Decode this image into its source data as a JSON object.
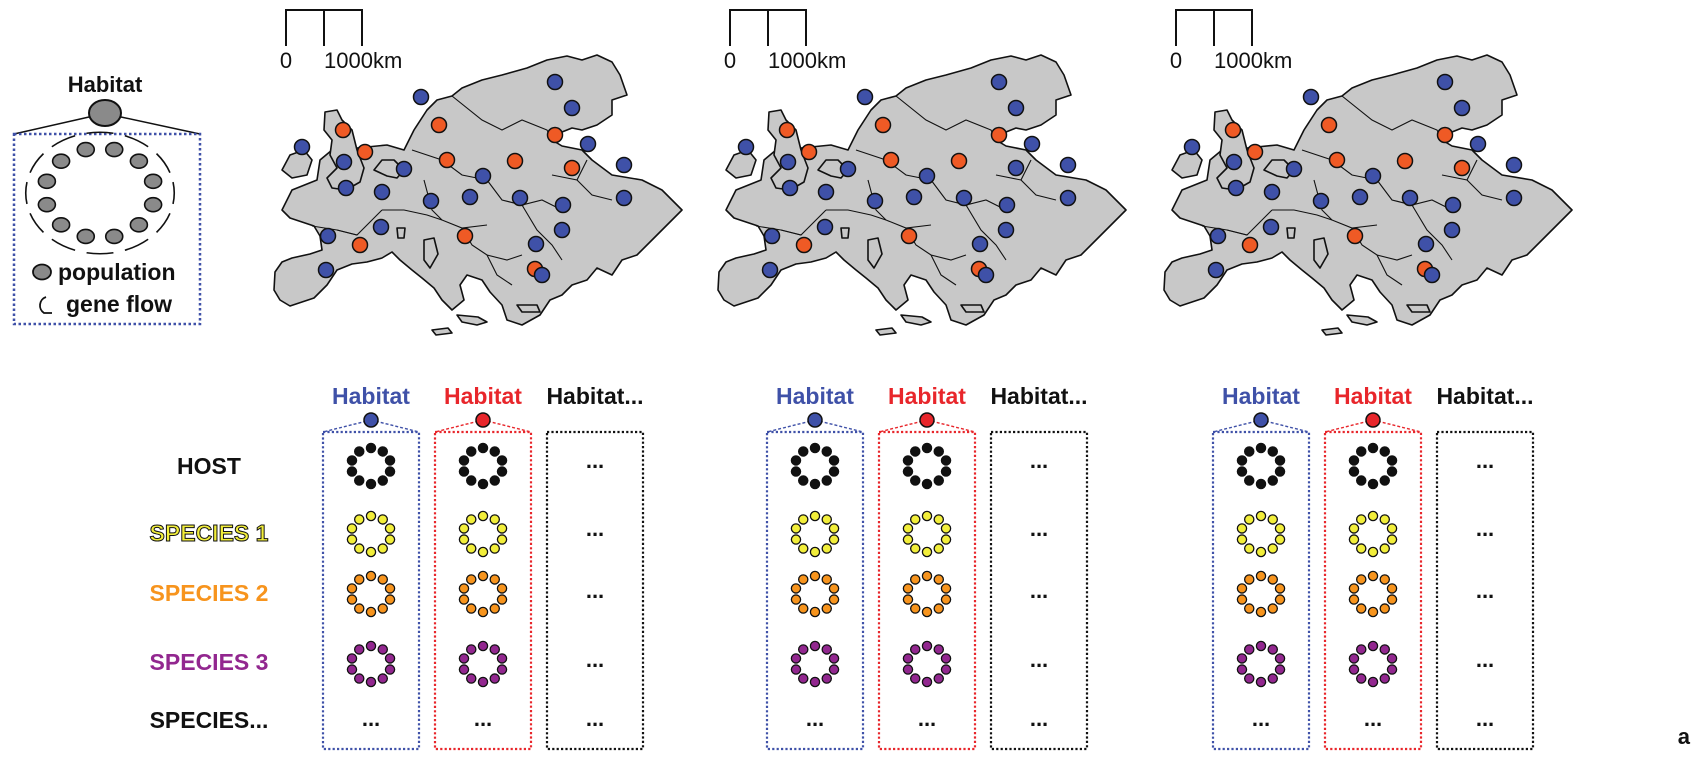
{
  "legend": {
    "habitat_label": "Habitat",
    "population_label": "population",
    "gene_flow_label": "gene flow"
  },
  "scale_bar": {
    "zero_label": "0",
    "distance_label": "1000km"
  },
  "row_labels": [
    "HOST",
    "SPECIES 1",
    "SPECIES 2",
    "SPECIES 3",
    "SPECIES..."
  ],
  "column_headers": {
    "blue": "Habitat",
    "red": "Habitat",
    "more": "Habitat..."
  },
  "ellipsis": "...",
  "corner_label": "a",
  "colors": {
    "blue": "#3f51a8",
    "orange": "#ef5a25",
    "red": "#e8262b",
    "land": "#c8c8c8",
    "host": "#111111",
    "species1": "#f2ee3a",
    "species2": "#f7941d",
    "species3": "#92278f",
    "species1_text": "#f2ee3a",
    "species2_text": "#f7941d",
    "species3_text": "#92278f",
    "legend_box": "#3f51a8"
  },
  "maps": [
    {
      "id": "map-1",
      "orange_sites": [
        "uk-n",
        "uk-s",
        "denmark",
        "spain",
        "germany",
        "poland",
        "baltic",
        "belarus",
        "italy",
        "greece"
      ]
    },
    {
      "id": "map-2",
      "orange_sites": [
        "uk-n",
        "uk-s",
        "denmark",
        "spain",
        "germany",
        "poland",
        "baltic",
        "italy",
        "greece"
      ]
    },
    {
      "id": "map-3",
      "orange_sites": [
        "uk-n",
        "uk-s",
        "denmark",
        "spain",
        "germany",
        "poland",
        "baltic",
        "belarus",
        "italy",
        "greece"
      ]
    }
  ]
}
